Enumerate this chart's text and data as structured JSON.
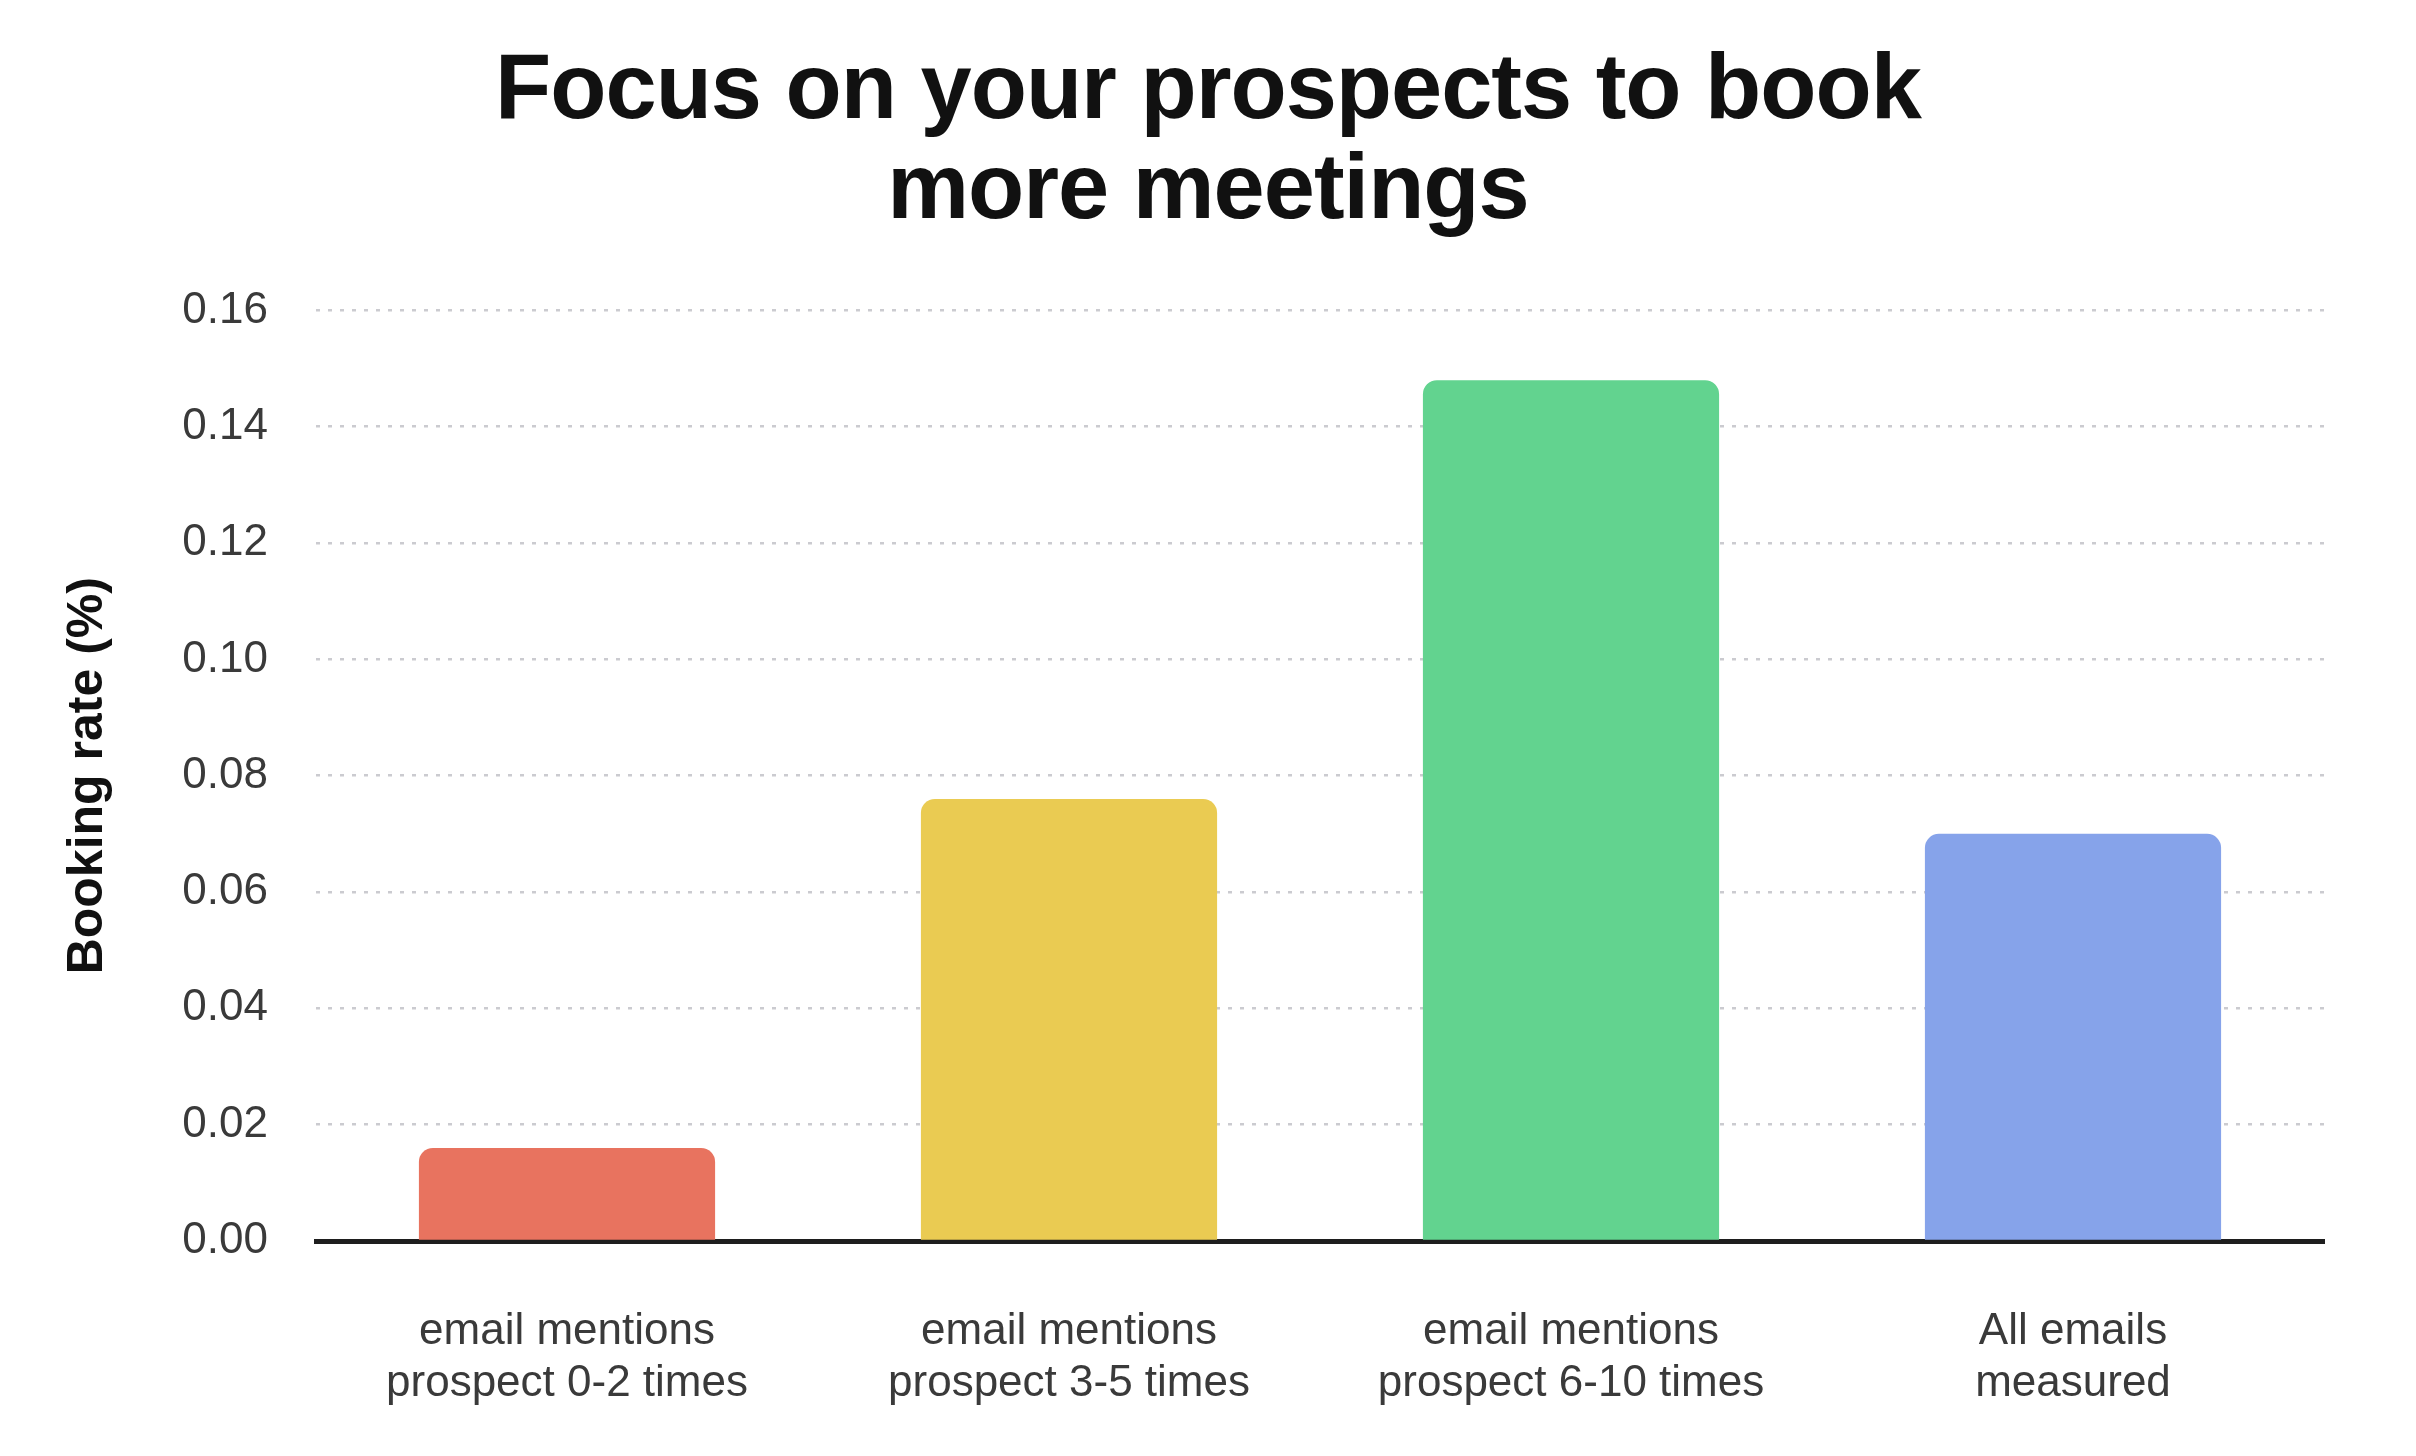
{
  "chart_data": {
    "type": "bar",
    "title": "Focus on your prospects to book more meetings",
    "ylabel": "Booking rate (%)",
    "categories": [
      "email mentions prospect 0-2 times",
      "email mentions prospect 3-5 times",
      "email mentions prospect 6-10 times",
      "All emails measured"
    ],
    "values": [
      0.016,
      0.076,
      0.148,
      0.07
    ],
    "colors": [
      "#e8735f",
      "#eacb52",
      "#62d38f",
      "#86a3ea"
    ],
    "ylim": [
      0,
      0.16
    ],
    "yticks": [
      {
        "value": 0,
        "label": "0.00"
      },
      0.02,
      0.04,
      0.06,
      0.08,
      {
        "value": 0.1,
        "label": "0.10"
      },
      0.12,
      0.14,
      0.16
    ],
    "grid": "y"
  }
}
